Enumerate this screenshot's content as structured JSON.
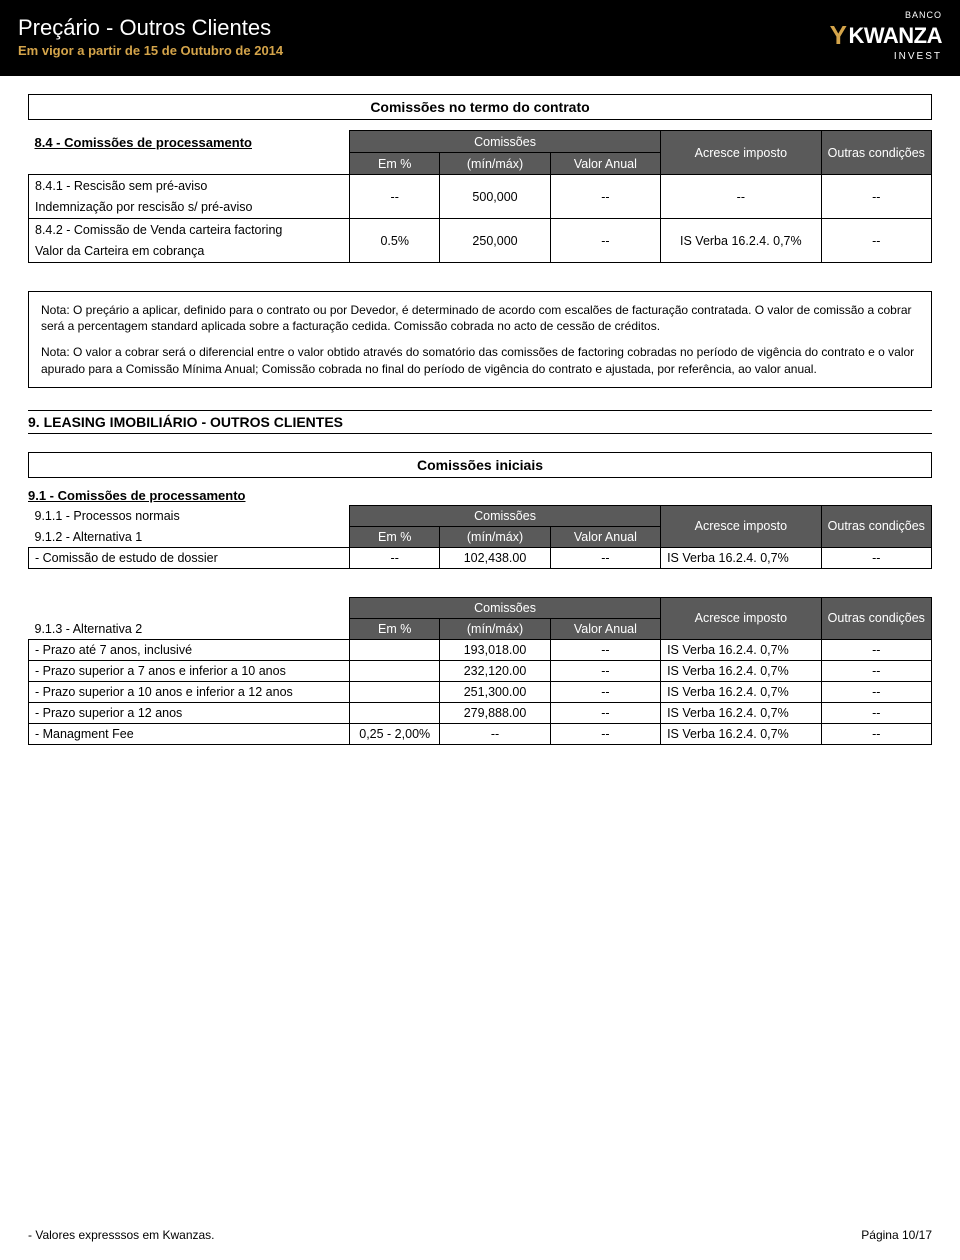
{
  "header": {
    "title": "Preçário - Outros Clientes",
    "subtitle": "Em vigor a partir de 15 de Outubro de 2014",
    "logo_top": "BANCO",
    "logo_main": "KWANZA",
    "logo_bottom": "INVEST"
  },
  "box_title_1": "Comissões no termo do contrato",
  "section_84": "8.4 - Comissões de processamento",
  "thead": {
    "comissoes": "Comissões",
    "em_pct": "Em %",
    "minmax": "(mín/máx)",
    "valor_anual": "Valor Anual",
    "acresce": "Acresce imposto",
    "outras": "Outras condições"
  },
  "table1": {
    "r1a": "8.4.1 - Rescisão sem pré-aviso",
    "r1b": "Indemnização por rescisão s/ pré-aviso",
    "r1_pct": "--",
    "r1_minmax": "500,000",
    "r1_va": "--",
    "r1_imp": "--",
    "r1_cond": "--",
    "r2a": "8.4.2 - Comissão de Venda carteira factoring",
    "r2b": "Valor da Carteira em cobrança",
    "r2_pct": "0.5%",
    "r2_minmax": "250,000",
    "r2_va": "--",
    "r2_imp": "IS Verba 16.2.4. 0,7%",
    "r2_cond": "--"
  },
  "notes": {
    "p1": "Nota: O preçário a aplicar, definido para o contrato ou por Devedor, é determinado de acordo com escalões de facturação contratada. O valor de comissão a cobrar será a percentagem standard aplicada sobre a facturação cedida. Comissão cobrada no acto de cessão de créditos.",
    "p2": "Nota: O valor a cobrar será o diferencial entre o valor obtido através do somatório das comissões de factoring cobradas no período de vigência do contrato e o valor apurado para a Comissão Mínima Anual; Comissão cobrada no final do período de vigência do contrato e ajustada, por referência, ao valor anual."
  },
  "section9_title": "9. LEASING IMOBILIÁRIO - OUTROS CLIENTES",
  "box_title_2": "Comissões iniciais",
  "section_91": "9.1 - Comissões de processamento",
  "section_911": "9.1.1 -  Processos normais",
  "section_912": "9.1.2  - Alternativa 1",
  "table2": {
    "r1_label": "- Comissão de estudo de dossier",
    "r1_pct": "--",
    "r1_minmax": "102,438.00",
    "r1_va": "--",
    "r1_imp": "IS Verba 16.2.4. 0,7%",
    "r1_cond": "--"
  },
  "section_913": "9.1.3  - Alternativa 2",
  "table3": {
    "rows": [
      {
        "label": "- Prazo até 7 anos, inclusivé",
        "pct": "",
        "minmax": "193,018.00",
        "va": "--",
        "imp": "IS Verba 16.2.4. 0,7%",
        "cond": "--"
      },
      {
        "label": "- Prazo superior a 7 anos e inferior a 10 anos",
        "pct": "",
        "minmax": "232,120.00",
        "va": "--",
        "imp": "IS Verba 16.2.4. 0,7%",
        "cond": "--"
      },
      {
        "label": "- Prazo superior a 10 anos e inferior a 12 anos",
        "pct": "",
        "minmax": "251,300.00",
        "va": "--",
        "imp": "IS Verba 16.2.4. 0,7%",
        "cond": "--"
      },
      {
        "label": "- Prazo superior a 12 anos",
        "pct": "",
        "minmax": "279,888.00",
        "va": "--",
        "imp": "IS Verba 16.2.4. 0,7%",
        "cond": "--"
      },
      {
        "label": "- Managment Fee",
        "pct": "0,25 - 2,00%",
        "minmax": "--",
        "va": "--",
        "imp": "IS Verba 16.2.4. 0,7%",
        "cond": "--"
      }
    ]
  },
  "footer": {
    "left": "- Valores expresssos em Kwanzas.",
    "right": "Página 10/17"
  },
  "colors": {
    "header_bg": "#000000",
    "accent": "#d4a44a",
    "table_header_bg": "#5a5a5a",
    "text": "#000000",
    "white": "#ffffff"
  }
}
